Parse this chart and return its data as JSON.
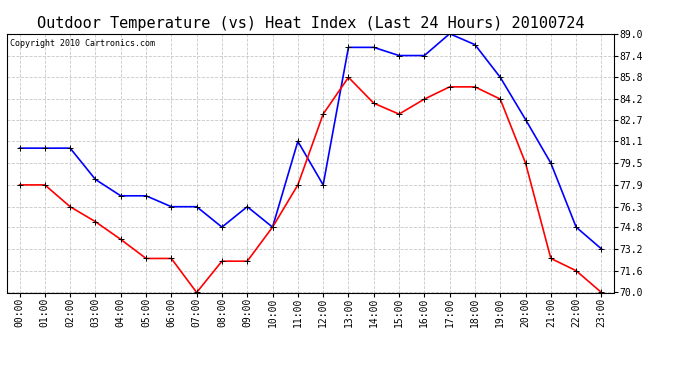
{
  "title": "Outdoor Temperature (vs) Heat Index (Last 24 Hours) 20100724",
  "copyright": "Copyright 2010 Cartronics.com",
  "hours": [
    "00:00",
    "01:00",
    "02:00",
    "03:00",
    "04:00",
    "05:00",
    "06:00",
    "07:00",
    "08:00",
    "09:00",
    "10:00",
    "11:00",
    "12:00",
    "13:00",
    "14:00",
    "15:00",
    "16:00",
    "17:00",
    "18:00",
    "19:00",
    "20:00",
    "21:00",
    "22:00",
    "23:00"
  ],
  "blue_data": [
    80.6,
    80.6,
    80.6,
    78.3,
    77.1,
    77.1,
    76.3,
    76.3,
    74.8,
    76.3,
    74.8,
    81.1,
    77.9,
    88.0,
    88.0,
    87.4,
    87.4,
    89.0,
    88.2,
    85.8,
    82.7,
    79.5,
    74.8,
    73.2
  ],
  "red_data": [
    77.9,
    77.9,
    76.3,
    75.2,
    73.9,
    72.5,
    72.5,
    70.0,
    72.3,
    72.3,
    74.8,
    77.9,
    83.1,
    85.8,
    83.9,
    83.1,
    84.2,
    85.1,
    85.1,
    84.2,
    79.5,
    72.5,
    71.6,
    70.0
  ],
  "blue_color": "#0000FF",
  "red_color": "#FF0000",
  "bg_color": "#FFFFFF",
  "plot_bg_color": "#FFFFFF",
  "grid_color": "#C8C8C8",
  "ylim_min": 70.0,
  "ylim_max": 89.0,
  "yticks": [
    70.0,
    71.6,
    73.2,
    74.8,
    76.3,
    77.9,
    79.5,
    81.1,
    82.7,
    84.2,
    85.8,
    87.4,
    89.0
  ],
  "title_fontsize": 11,
  "copyright_fontsize": 6,
  "tick_fontsize": 7,
  "marker": "+",
  "marker_size": 4,
  "linewidth": 1.2
}
